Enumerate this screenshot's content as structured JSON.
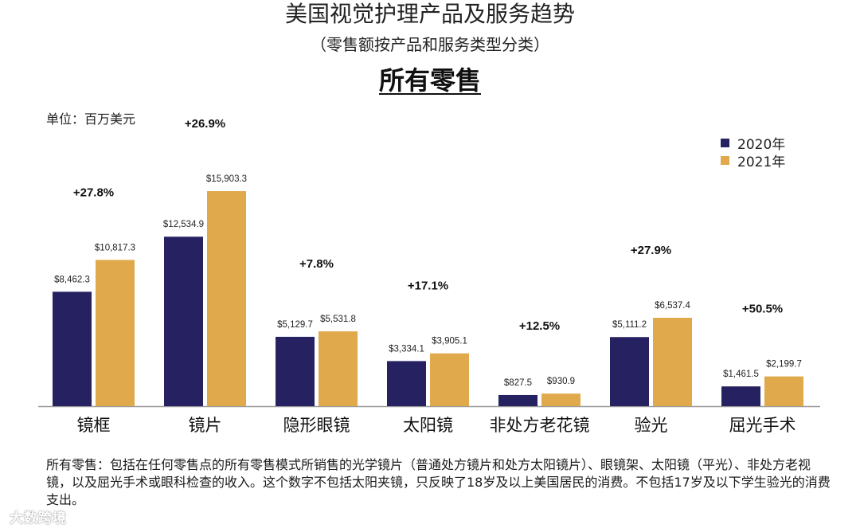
{
  "title": "美国视觉护理产品及服务趋势",
  "subtitle": "（零售额按产品和服务类型分类）",
  "heading": "所有零售",
  "unit_label": "单位：百万美元",
  "colors": {
    "series_2020": "#262262",
    "series_2021": "#E0A94C",
    "axis": "#9a9a9a"
  },
  "chart_data": {
    "type": "bar",
    "categories": [
      "镜框",
      "镜片",
      "隐形眼镜",
      "太阳镜",
      "非处方老花镜",
      "验光",
      "屈光手术"
    ],
    "series": [
      {
        "name": "2020年",
        "values": [
          8462.3,
          12534.9,
          5129.7,
          3334.1,
          827.5,
          5111.2,
          1461.5
        ],
        "labels": [
          "$8,462.3",
          "$12,534.9",
          "$5,129.7",
          "$3,334.1",
          "$827.5",
          "$5,111.2",
          "$1,461.5"
        ]
      },
      {
        "name": "2021年",
        "values": [
          10817.3,
          15903.3,
          5531.8,
          3905.1,
          930.9,
          6537.4,
          2199.7
        ],
        "labels": [
          "$10,817.3",
          "$15,903.3",
          "$5,531.8",
          "$3,905.1",
          "$930.9",
          "$6,537.4",
          "$2,199.7"
        ]
      }
    ],
    "growth": [
      "+27.8%",
      "+26.9%",
      "+7.8%",
      "+17.1%",
      "+12.5%",
      "+27.9%",
      "+50.5%"
    ],
    "ylim": [
      0,
      18000
    ],
    "grid": false,
    "legend_position": "top-right"
  },
  "footnote": "所有零售：包括在任何零售点的所有零售模式所销售的光学镜片（普通处方镜片和处方太阳镜片）、眼镜架、太阳镜（平光）、非处方老视镜，以及屈光手术或眼科检查的收入。这个数字不包括太阳夹镜，只反映了18岁及以上美国居民的消费。不包括17岁及以下学生验光的消费支出。",
  "watermark": "大数跨境"
}
